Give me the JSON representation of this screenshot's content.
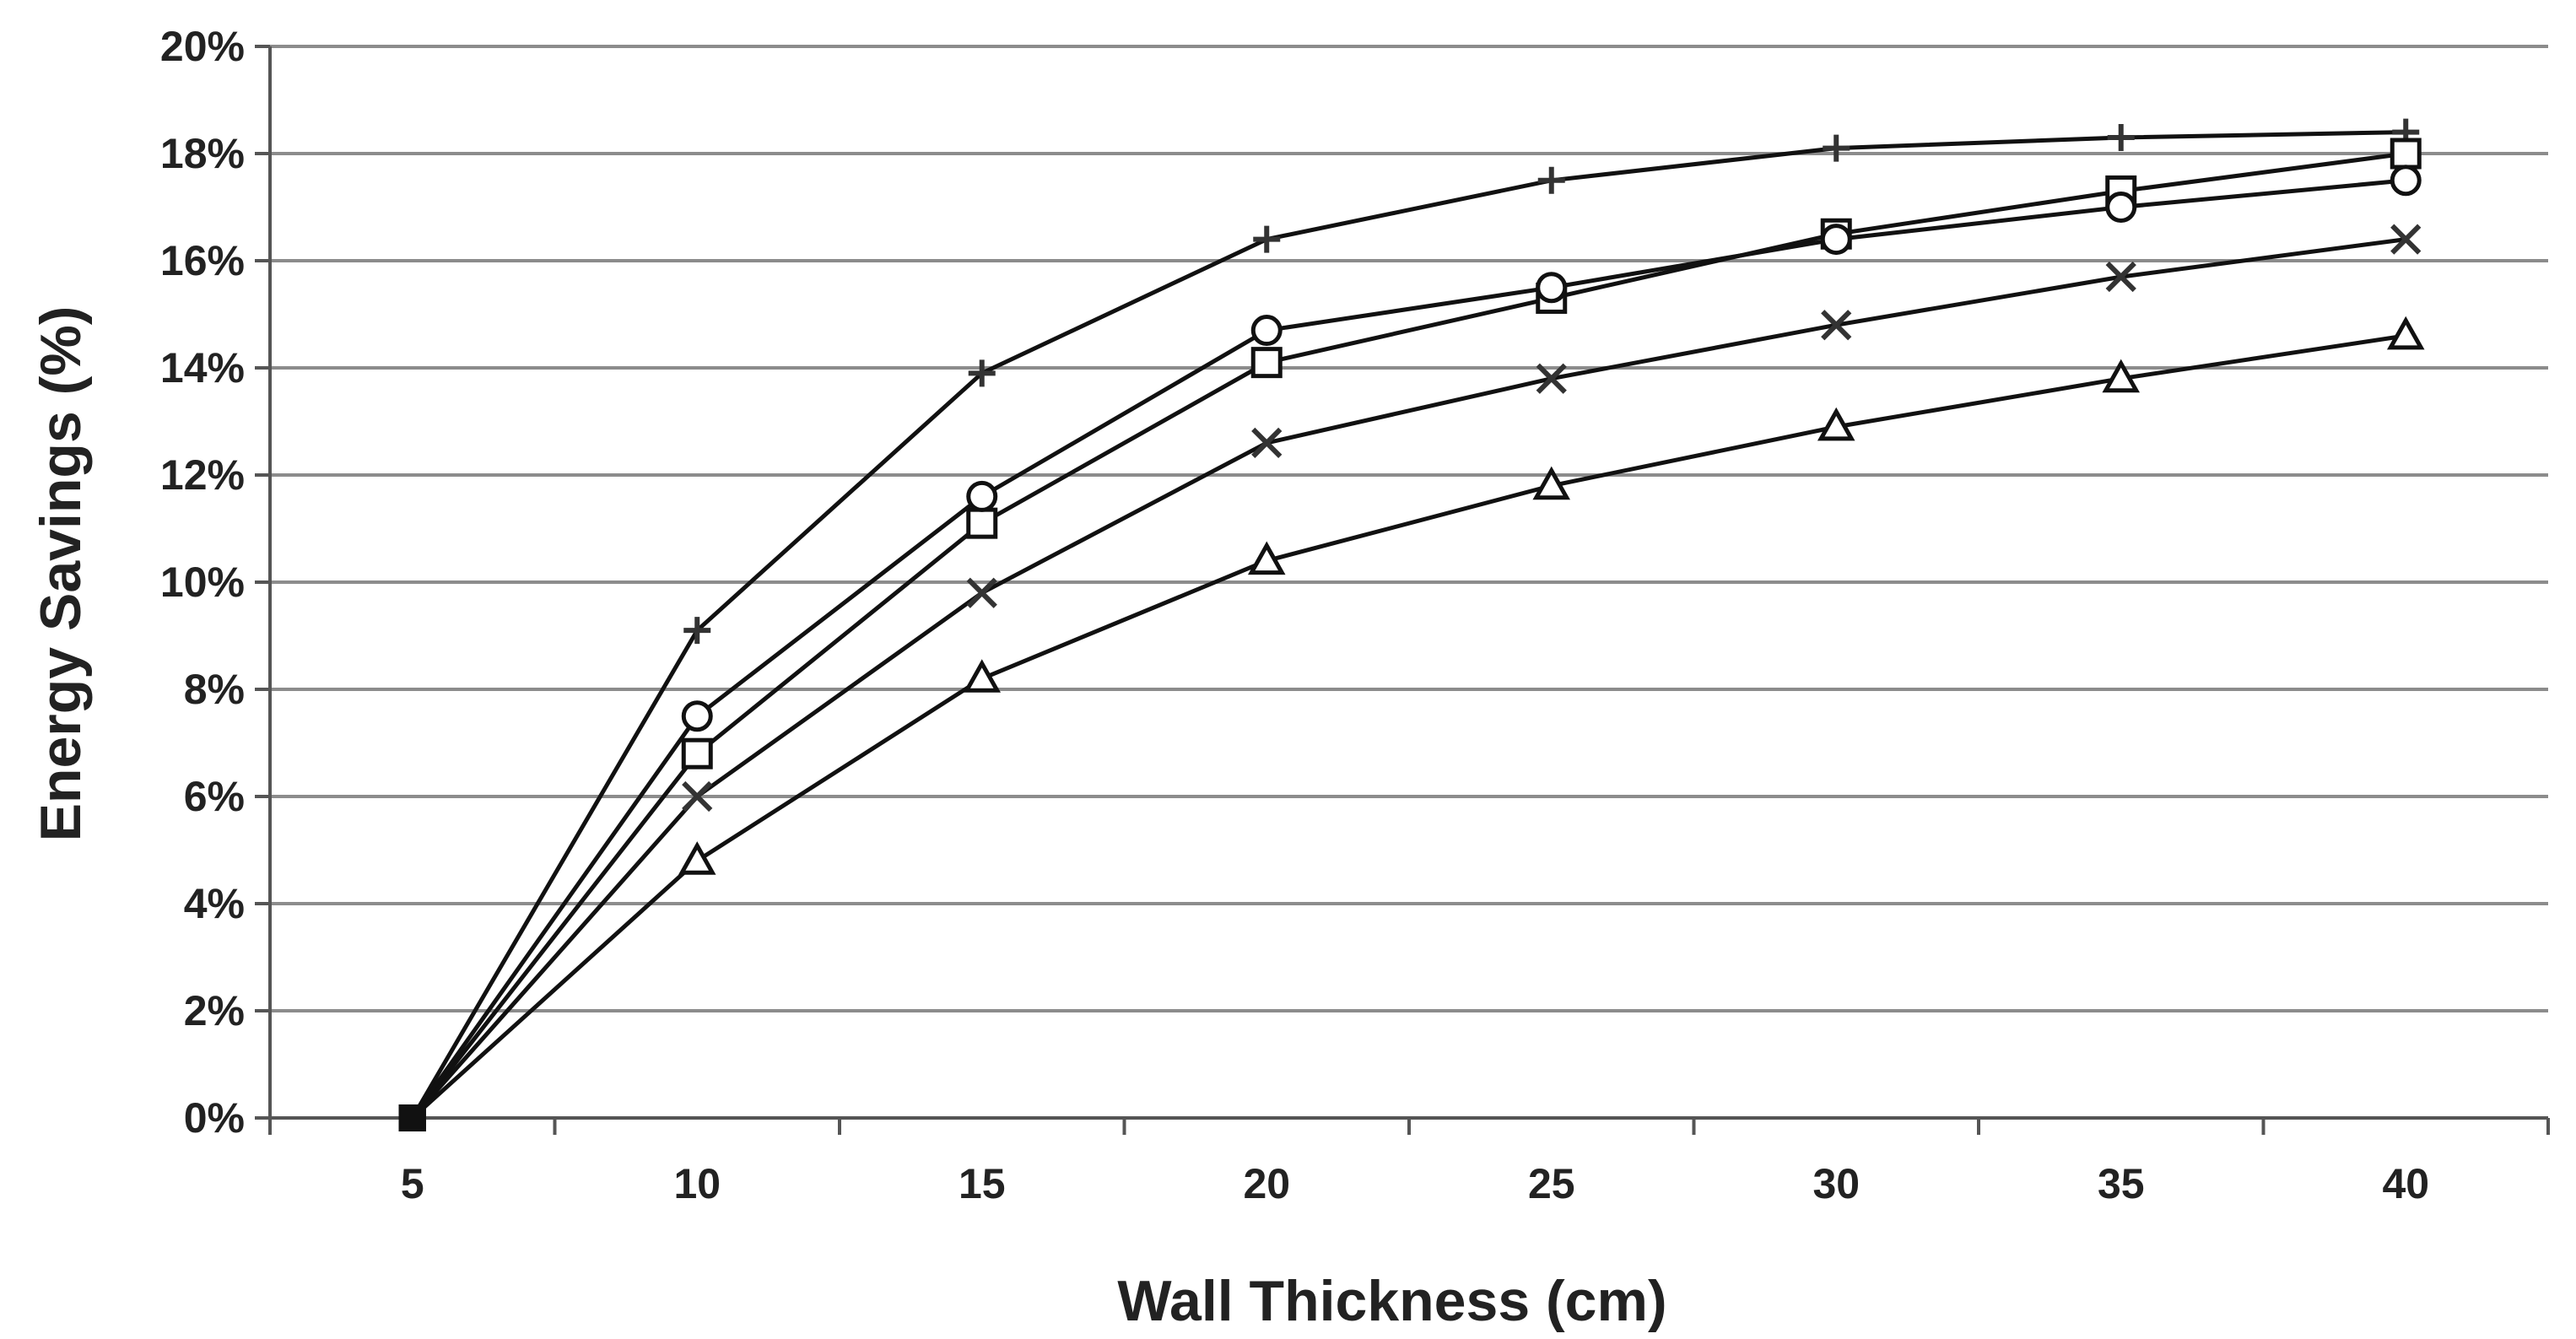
{
  "chart_data": {
    "type": "line",
    "title": "",
    "xlabel": "Wall Thickness (cm)",
    "ylabel": "Energy Savings (%)",
    "x": [
      5,
      10,
      15,
      20,
      25,
      30,
      35,
      40
    ],
    "x_tick_labels": [
      "5",
      "10",
      "15",
      "20",
      "25",
      "30",
      "35",
      "40"
    ],
    "ylim": [
      0,
      20
    ],
    "y_ticks": [
      0,
      2,
      4,
      6,
      8,
      10,
      12,
      14,
      16,
      18,
      20
    ],
    "y_tick_labels": [
      "0%",
      "2%",
      "4%",
      "6%",
      "8%",
      "10%",
      "12%",
      "14%",
      "16%",
      "18%",
      "20%"
    ],
    "grid": true,
    "legend": "none",
    "series": [
      {
        "name": "plus",
        "marker": "plus",
        "values": [
          0,
          9.1,
          13.9,
          16.4,
          17.5,
          18.1,
          18.3,
          18.4
        ]
      },
      {
        "name": "square",
        "marker": "square",
        "values": [
          0,
          6.8,
          11.1,
          14.1,
          15.3,
          16.5,
          17.3,
          18.0
        ]
      },
      {
        "name": "circle",
        "marker": "circle",
        "values": [
          0,
          7.5,
          11.6,
          14.7,
          15.5,
          16.4,
          17.0,
          17.5
        ]
      },
      {
        "name": "cross",
        "marker": "x",
        "values": [
          0,
          6.0,
          9.8,
          12.6,
          13.8,
          14.8,
          15.7,
          16.4
        ]
      },
      {
        "name": "triangle",
        "marker": "triangle",
        "values": [
          0,
          4.8,
          8.2,
          10.4,
          11.8,
          12.9,
          13.8,
          14.6
        ]
      }
    ],
    "colors": {
      "line": "#111111",
      "grid": "#8c8c8c",
      "axis": "#555555",
      "text": "#222222"
    }
  }
}
